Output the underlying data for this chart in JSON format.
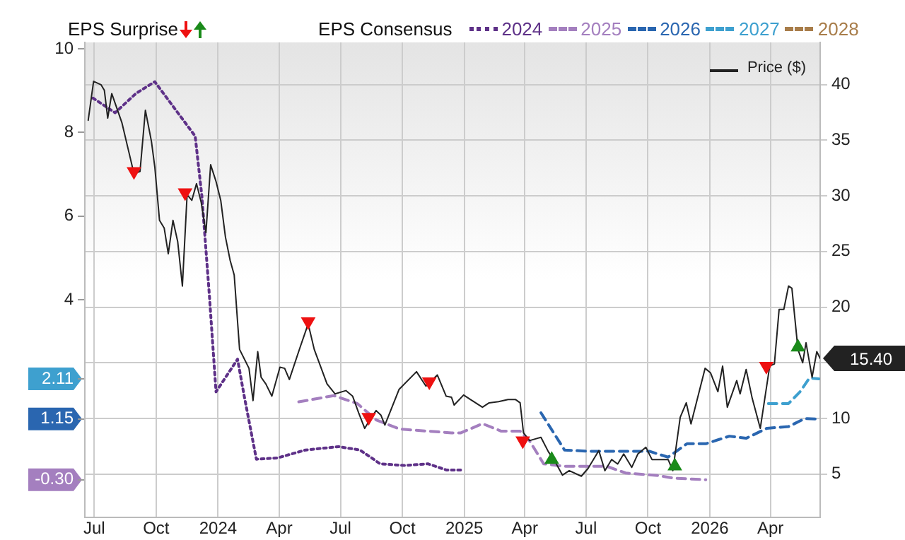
{
  "chart_data": {
    "type": "line",
    "legend_title": "EPS Consensus",
    "annotations": [
      "EPS Surprise"
    ],
    "legend": "top",
    "grid": true,
    "marker": "none",
    "xlim": [
      "2023-06-17",
      "2026-06-14"
    ],
    "xticks": [
      {
        "value": "2023-07-01",
        "label": "Jul"
      },
      {
        "value": "2023-10-01",
        "label": "Oct"
      },
      {
        "value": "2024-01-01",
        "label": "2024"
      },
      {
        "value": "2024-04-01",
        "label": "Apr"
      },
      {
        "value": "2024-07-01",
        "label": "Jul"
      },
      {
        "value": "2024-10-01",
        "label": "Oct"
      },
      {
        "value": "2025-01-01",
        "label": "2025"
      },
      {
        "value": "2025-04-01",
        "label": "Apr"
      },
      {
        "value": "2025-07-01",
        "label": "Jul"
      },
      {
        "value": "2025-10-01",
        "label": "Oct"
      },
      {
        "value": "2026-01-01",
        "label": "2026"
      },
      {
        "value": "2026-04-01",
        "label": "Apr"
      }
    ],
    "ylim": [
      -1.2,
      10.15
    ],
    "yticks": [
      {
        "value": -0.3,
        "label": "-0.30"
      },
      {
        "value": 1.15,
        "label": "1.15"
      },
      {
        "value": 2.11,
        "label": "2.11"
      },
      4,
      6,
      8,
      10
    ],
    "y2lim": [
      1.1,
      43.8
    ],
    "y2ticks": [
      5,
      10,
      {
        "value": 15,
        "label": null
      },
      20,
      25,
      30,
      35,
      40
    ],
    "series": [
      {
        "name": "2024",
        "color": "#5e3188",
        "line_style": "dotted",
        "x": [
          "2023-06-29",
          "2023-08-01",
          "2023-09-01",
          "2023-09-29",
          "2023-11-28",
          "2023-12-08",
          "2023-12-19",
          "2023-12-29",
          "2024-01-30",
          "2024-02-09",
          "2024-02-27",
          "2024-03-29",
          "2024-05-10",
          "2024-06-28",
          "2024-07-30",
          "2024-08-29",
          "2024-10-04",
          "2024-11-08",
          "2024-12-06",
          "2024-12-27"
        ],
        "values": [
          8.82,
          8.47,
          8.93,
          9.21,
          7.91,
          6.47,
          4.13,
          1.8,
          2.58,
          1.69,
          0.19,
          0.22,
          0.41,
          0.49,
          0.41,
          0.08,
          0.04,
          0.08,
          -0.07,
          -0.07
        ]
      },
      {
        "name": "2025",
        "color": "#a47fbf",
        "line_style": "dashed",
        "x": [
          "2024-04-30",
          "2024-06-21",
          "2024-07-26",
          "2024-08-23",
          "2024-09-27",
          "2024-12-13",
          "2024-12-27",
          "2025-01-28",
          "2025-02-25",
          "2025-03-25",
          "2025-04-08",
          "2025-04-29",
          "2025-05-30",
          "2025-08-01",
          "2025-08-29",
          "2025-10-17",
          "2025-11-07",
          "2025-12-26"
        ],
        "values": [
          1.56,
          1.71,
          1.52,
          1.13,
          0.91,
          0.82,
          0.82,
          1.04,
          0.86,
          0.86,
          0.63,
          0.08,
          0.02,
          0.02,
          -0.14,
          -0.2,
          -0.26,
          -0.3
        ]
      },
      {
        "name": "2026",
        "color": "#2a66b0",
        "line_style": "dashed",
        "x": [
          "2025-04-25",
          "2025-05-30",
          "2025-07-04",
          "2025-10-03",
          "2025-10-31",
          "2025-11-28",
          "2025-12-26",
          "2026-01-30",
          "2026-02-24",
          "2026-03-27",
          "2026-04-28",
          "2026-05-22",
          "2026-06-12"
        ],
        "values": [
          1.3,
          0.41,
          0.38,
          0.38,
          0.24,
          0.56,
          0.56,
          0.74,
          0.69,
          0.93,
          0.97,
          1.16,
          1.15
        ]
      },
      {
        "name": "2027",
        "color": "#3ea0cf",
        "line_style": "dashed",
        "x": [
          "2026-03-29",
          "2026-04-28",
          "2026-05-15",
          "2026-05-29",
          "2026-06-12"
        ],
        "values": [
          1.52,
          1.52,
          1.8,
          2.13,
          2.11
        ]
      },
      {
        "name": "2028",
        "color": "#a87d4a",
        "line_style": "dashed"
      },
      {
        "name": "Price ($)",
        "color": "#222222",
        "axis": "y2",
        "line_style": "solid",
        "x": [
          "2023-06-22",
          "2023-06-30",
          "2023-07-11",
          "2023-07-16",
          "2023-07-21",
          "2023-07-27",
          "2023-08-11",
          "2023-08-22",
          "2023-08-29",
          "2023-09-07",
          "2023-09-15",
          "2023-09-24",
          "2023-09-29",
          "2023-10-06",
          "2023-10-13",
          "2023-10-19",
          "2023-10-26",
          "2023-11-02",
          "2023-11-09",
          "2023-11-16",
          "2023-11-23",
          "2023-11-30",
          "2023-12-07",
          "2023-12-14",
          "2023-12-21",
          "2023-12-29",
          "2024-01-05",
          "2024-01-12",
          "2024-01-19",
          "2024-01-25",
          "2024-01-30",
          "2024-02-02",
          "2024-02-16",
          "2024-02-22",
          "2024-02-29",
          "2024-03-05",
          "2024-03-12",
          "2024-03-21",
          "2024-04-02",
          "2024-04-09",
          "2024-04-16",
          "2024-05-02",
          "2024-05-14",
          "2024-05-23",
          "2024-06-11",
          "2024-06-23",
          "2024-07-09",
          "2024-07-19",
          "2024-07-28",
          "2024-08-06",
          "2024-08-16",
          "2024-08-23",
          "2024-08-30",
          "2024-09-05",
          "2024-09-26",
          "2024-10-22",
          "2024-11-05",
          "2024-11-22",
          "2024-12-05",
          "2024-12-13",
          "2024-12-17",
          "2024-12-31",
          "2025-01-10",
          "2025-01-28",
          "2025-02-07",
          "2025-02-21",
          "2025-03-07",
          "2025-03-18",
          "2025-03-25",
          "2025-03-30",
          "2025-04-08",
          "2025-04-25",
          "2025-05-06",
          "2025-05-16",
          "2025-05-27",
          "2025-06-06",
          "2025-06-24",
          "2025-07-04",
          "2025-07-20",
          "2025-07-29",
          "2025-08-08",
          "2025-08-17",
          "2025-08-26",
          "2025-09-07",
          "2025-09-16",
          "2025-09-28",
          "2025-10-07",
          "2025-10-21",
          "2025-10-31",
          "2025-11-07",
          "2025-11-18",
          "2025-11-27",
          "2025-12-04",
          "2025-12-25",
          "2026-01-02",
          "2026-01-13",
          "2026-01-20",
          "2026-01-27",
          "2026-02-10",
          "2026-02-15",
          "2026-02-24",
          "2026-03-05",
          "2026-03-17",
          "2026-03-31",
          "2026-04-07",
          "2026-04-14",
          "2026-04-21",
          "2026-04-28",
          "2026-05-03",
          "2026-05-12",
          "2026-05-19",
          "2026-05-24",
          "2026-06-02",
          "2026-06-09",
          "2026-06-14"
        ],
        "values": [
          36.8,
          40.3,
          40.0,
          39.5,
          37.0,
          39.2,
          36.6,
          33.8,
          32.0,
          32.2,
          37.7,
          34.9,
          32.6,
          27.8,
          27.1,
          24.8,
          27.8,
          25.9,
          21.9,
          30.1,
          29.6,
          31.1,
          29.4,
          26.7,
          32.8,
          31.3,
          29.6,
          26.3,
          24.2,
          22.9,
          18.7,
          16.2,
          14.5,
          11.6,
          16.0,
          13.7,
          13.1,
          12.0,
          14.6,
          14.5,
          13.5,
          16.4,
          18.5,
          16.2,
          13.1,
          12.2,
          12.5,
          12.0,
          10.5,
          9.1,
          10.1,
          10.7,
          10.3,
          9.4,
          12.6,
          14.2,
          12.9,
          13.9,
          12.0,
          11.9,
          11.2,
          12.1,
          11.7,
          11.0,
          11.4,
          11.5,
          11.7,
          11.7,
          11.4,
          8.7,
          8.0,
          8.3,
          7.0,
          6.1,
          4.9,
          5.3,
          4.8,
          5.5,
          7.1,
          5.3,
          6.3,
          5.9,
          6.8,
          5.6,
          6.8,
          7.4,
          6.3,
          6.3,
          6.3,
          5.3,
          10.1,
          11.4,
          9.5,
          14.5,
          14.1,
          12.4,
          14.7,
          11.0,
          13.4,
          12.2,
          14.4,
          11.8,
          9.1,
          14.7,
          14.9,
          19.8,
          19.8,
          21.9,
          21.7,
          16.2,
          15.0,
          16.8,
          13.7,
          16.0,
          15.4
        ],
        "value_labels": [
          null,
          null,
          null,
          null,
          null,
          null,
          null,
          null,
          null,
          null,
          null,
          null,
          null,
          null,
          null,
          null,
          null,
          null,
          null,
          null,
          null,
          null,
          null,
          null,
          null,
          null,
          null,
          null,
          null,
          null,
          null,
          null,
          null,
          null,
          null,
          null,
          null,
          null,
          null,
          null,
          null,
          null,
          null,
          null,
          null,
          null,
          null,
          null,
          null,
          null,
          null,
          null,
          null,
          null,
          null,
          null,
          null,
          null,
          null,
          null,
          null,
          null,
          null,
          null,
          null,
          null,
          null,
          null,
          null,
          null,
          null,
          null,
          null,
          null,
          null,
          null,
          null,
          null,
          null,
          null,
          null,
          null,
          null,
          null,
          null,
          null,
          null,
          null,
          null,
          null,
          null,
          null,
          null,
          null,
          null,
          null,
          null,
          null,
          null,
          null,
          null,
          null,
          null,
          null,
          null,
          null,
          null,
          null,
          null,
          null,
          null,
          null,
          null,
          null,
          "15.40"
        ]
      },
      {
        "type": "scatter",
        "color": "#ee1111",
        "axis": "y2",
        "marker": "triangle",
        "x": [
          "2023-08-29",
          "2023-11-13",
          "2024-05-14",
          "2024-08-12",
          "2024-11-10",
          "2025-03-29",
          "2026-03-26"
        ],
        "values": [
          32.2,
          30.3,
          18.7,
          10.1,
          13.3,
          8.0,
          14.7
        ]
      },
      {
        "type": "scatter",
        "color": "#1a8a1a",
        "axis": "y2",
        "marker": "triangle",
        "x": [
          "2025-05-11",
          "2025-11-10",
          "2026-05-12"
        ],
        "values": [
          6.3,
          5.7,
          16.4
        ]
      }
    ]
  }
}
